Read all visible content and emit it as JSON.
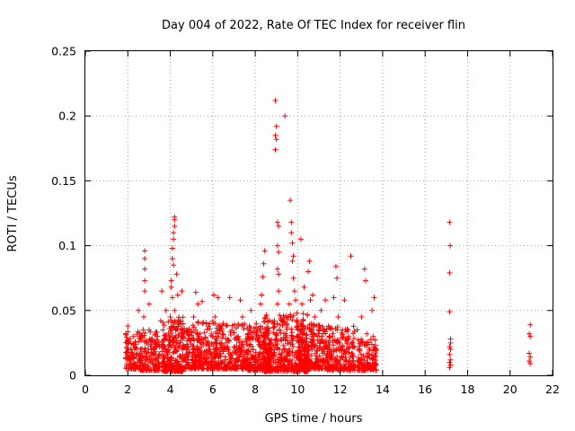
{
  "chart_data": {
    "type": "scatter",
    "title": "Day 004 of 2022, Rate Of TEC Index for receiver flin",
    "xlabel": "GPS time / hours",
    "ylabel": "ROTI / TECUs",
    "xlim": [
      0,
      22
    ],
    "ylim": [
      0,
      0.25
    ],
    "xticks": [
      0,
      2,
      4,
      6,
      8,
      10,
      12,
      14,
      16,
      18,
      20,
      22
    ],
    "xtick_labels": [
      "0",
      "2",
      "4",
      "6",
      "8",
      "10",
      "12",
      "14",
      "16",
      "18",
      "20",
      "22"
    ],
    "yticks": [
      0,
      0.05,
      0.1,
      0.15,
      0.2,
      0.25
    ],
    "ytick_labels": [
      "0",
      "0.05",
      "0.1",
      "0.15",
      "0.2",
      "0.25"
    ],
    "grid": true,
    "marker": "plus",
    "marker_color": "#ff0000",
    "series": [
      {
        "points": [
          [
            1.9,
            0.032
          ],
          [
            1.95,
            0.018
          ],
          [
            2.0,
            0.012
          ],
          [
            2.05,
            0.025
          ],
          [
            2.1,
            0.008
          ],
          [
            2.15,
            0.02
          ],
          [
            2.2,
            0.014
          ],
          [
            2.25,
            0.03
          ],
          [
            2.3,
            0.009
          ],
          [
            2.35,
            0.022
          ],
          [
            2.4,
            0.016
          ],
          [
            2.45,
            0.01
          ],
          [
            2.0,
            0.038
          ],
          [
            2.1,
            0.028
          ],
          [
            2.5,
            0.05
          ],
          [
            2.55,
            0.012
          ],
          [
            2.6,
            0.02
          ],
          [
            2.65,
            0.03
          ],
          [
            2.7,
            0.008
          ],
          [
            2.75,
            0.045
          ],
          [
            2.8,
            0.096
          ],
          [
            2.8,
            0.09
          ],
          [
            2.8,
            0.082
          ],
          [
            2.8,
            0.073
          ],
          [
            2.8,
            0.065
          ],
          [
            2.85,
            0.015
          ],
          [
            2.9,
            0.025
          ],
          [
            2.95,
            0.012
          ],
          [
            3.0,
            0.035
          ],
          [
            3.0,
            0.055
          ],
          [
            3.05,
            0.01
          ],
          [
            3.1,
            0.02
          ],
          [
            3.15,
            0.028
          ],
          [
            3.2,
            0.018
          ],
          [
            3.3,
            0.012
          ],
          [
            3.4,
            0.03
          ],
          [
            3.5,
            0.022
          ],
          [
            3.55,
            0.042
          ],
          [
            3.6,
            0.065
          ],
          [
            3.65,
            0.035
          ],
          [
            3.7,
            0.015
          ],
          [
            3.75,
            0.028
          ],
          [
            3.8,
            0.05
          ],
          [
            3.85,
            0.008
          ],
          [
            3.9,
            0.02
          ],
          [
            3.95,
            0.012
          ],
          [
            4.0,
            0.03
          ],
          [
            4.0,
            0.045
          ],
          [
            4.05,
            0.068
          ],
          [
            4.05,
            0.073
          ],
          [
            4.1,
            0.09
          ],
          [
            4.1,
            0.098
          ],
          [
            4.15,
            0.105
          ],
          [
            4.15,
            0.11
          ],
          [
            4.2,
            0.115
          ],
          [
            4.2,
            0.12
          ],
          [
            4.2,
            0.122
          ],
          [
            4.15,
            0.085
          ],
          [
            4.1,
            0.06
          ],
          [
            4.2,
            0.05
          ],
          [
            4.25,
            0.035
          ],
          [
            4.25,
            0.02
          ],
          [
            4.3,
            0.01
          ],
          [
            4.3,
            0.078
          ],
          [
            4.35,
            0.062
          ],
          [
            4.4,
            0.025
          ],
          [
            4.45,
            0.015
          ],
          [
            4.5,
            0.042
          ],
          [
            4.55,
            0.065
          ],
          [
            4.6,
            0.03
          ],
          [
            4.7,
            0.012
          ],
          [
            4.75,
            0.022
          ],
          [
            4.8,
            0.035
          ],
          [
            4.9,
            0.018
          ],
          [
            5.0,
            0.028
          ],
          [
            5.05,
            0.012
          ],
          [
            5.1,
            0.045
          ],
          [
            5.2,
            0.064
          ],
          [
            5.25,
            0.02
          ],
          [
            5.3,
            0.055
          ],
          [
            5.35,
            0.01
          ],
          [
            5.4,
            0.032
          ],
          [
            5.5,
            0.057
          ],
          [
            5.55,
            0.025
          ],
          [
            5.6,
            0.015
          ],
          [
            5.7,
            0.04
          ],
          [
            5.8,
            0.02
          ],
          [
            5.9,
            0.01
          ],
          [
            6.0,
            0.03
          ],
          [
            6.05,
            0.062
          ],
          [
            6.1,
            0.045
          ],
          [
            6.15,
            0.015
          ],
          [
            6.2,
            0.025
          ],
          [
            6.25,
            0.06
          ],
          [
            6.3,
            0.035
          ],
          [
            6.4,
            0.01
          ],
          [
            6.5,
            0.04
          ],
          [
            6.55,
            0.02
          ],
          [
            6.6,
            0.012
          ],
          [
            6.7,
            0.028
          ],
          [
            6.8,
            0.06
          ],
          [
            6.85,
            0.015
          ],
          [
            6.9,
            0.035
          ],
          [
            7.0,
            0.022
          ],
          [
            7.1,
            0.01
          ],
          [
            7.2,
            0.03
          ],
          [
            7.3,
            0.058
          ],
          [
            7.35,
            0.018
          ],
          [
            7.4,
            0.045
          ],
          [
            7.5,
            0.012
          ],
          [
            7.6,
            0.025
          ],
          [
            7.7,
            0.035
          ],
          [
            7.8,
            0.05
          ],
          [
            7.85,
            0.015
          ],
          [
            7.9,
            0.02
          ],
          [
            8.0,
            0.01
          ],
          [
            8.05,
            0.04
          ],
          [
            8.1,
            0.028
          ],
          [
            8.15,
            0.012
          ],
          [
            8.2,
            0.035
          ],
          [
            8.25,
            0.055
          ],
          [
            8.3,
            0.062
          ],
          [
            8.35,
            0.076
          ],
          [
            8.4,
            0.086
          ],
          [
            8.45,
            0.096
          ],
          [
            8.5,
            0.045
          ],
          [
            8.55,
            0.02
          ],
          [
            8.6,
            0.032
          ],
          [
            8.65,
            0.012
          ],
          [
            8.7,
            0.025
          ],
          [
            8.8,
            0.015
          ],
          [
            8.85,
            0.04
          ],
          [
            8.95,
            0.212
          ],
          [
            9.0,
            0.192
          ],
          [
            8.95,
            0.185
          ],
          [
            9.0,
            0.182
          ],
          [
            8.95,
            0.174
          ],
          [
            9.05,
            0.118
          ],
          [
            9.1,
            0.115
          ],
          [
            9.05,
            0.1
          ],
          [
            9.1,
            0.095
          ],
          [
            9.05,
            0.082
          ],
          [
            9.1,
            0.078
          ],
          [
            9.1,
            0.065
          ],
          [
            9.05,
            0.055
          ],
          [
            9.1,
            0.035
          ],
          [
            9.15,
            0.02
          ],
          [
            9.2,
            0.01
          ],
          [
            9.3,
            0.042
          ],
          [
            9.4,
            0.2
          ],
          [
            9.45,
            0.032
          ],
          [
            9.5,
            0.015
          ],
          [
            9.55,
            0.045
          ],
          [
            9.6,
            0.055
          ],
          [
            9.65,
            0.135
          ],
          [
            9.7,
            0.118
          ],
          [
            9.7,
            0.11
          ],
          [
            9.75,
            0.102
          ],
          [
            9.8,
            0.092
          ],
          [
            9.75,
            0.088
          ],
          [
            9.8,
            0.075
          ],
          [
            9.85,
            0.065
          ],
          [
            9.9,
            0.058
          ],
          [
            9.95,
            0.048
          ],
          [
            10.0,
            0.035
          ],
          [
            10.05,
            0.025
          ],
          [
            10.1,
            0.015
          ],
          [
            10.15,
            0.105
          ],
          [
            10.2,
            0.055
          ],
          [
            10.25,
            0.042
          ],
          [
            10.3,
            0.068
          ],
          [
            10.35,
            0.02
          ],
          [
            10.4,
            0.012
          ],
          [
            10.5,
            0.08
          ],
          [
            10.55,
            0.088
          ],
          [
            10.6,
            0.058
          ],
          [
            10.7,
            0.062
          ],
          [
            10.75,
            0.03
          ],
          [
            10.8,
            0.045
          ],
          [
            10.9,
            0.015
          ],
          [
            11.0,
            0.035
          ],
          [
            11.05,
            0.025
          ],
          [
            11.1,
            0.05
          ],
          [
            11.2,
            0.012
          ],
          [
            11.3,
            0.058
          ],
          [
            11.4,
            0.02
          ],
          [
            11.45,
            0.038
          ],
          [
            11.5,
            0.03
          ],
          [
            11.6,
            0.015
          ],
          [
            11.7,
            0.06
          ],
          [
            11.8,
            0.084
          ],
          [
            11.85,
            0.075
          ],
          [
            11.9,
            0.045
          ],
          [
            11.95,
            0.025
          ],
          [
            12.0,
            0.012
          ],
          [
            12.1,
            0.035
          ],
          [
            12.2,
            0.058
          ],
          [
            12.3,
            0.02
          ],
          [
            12.4,
            0.03
          ],
          [
            12.5,
            0.092
          ],
          [
            12.55,
            0.015
          ],
          [
            12.6,
            0.025
          ],
          [
            12.7,
            0.008
          ],
          [
            12.8,
            0.035
          ],
          [
            12.9,
            0.012
          ],
          [
            13.0,
            0.045
          ],
          [
            13.05,
            0.025
          ],
          [
            13.1,
            0.015
          ],
          [
            13.15,
            0.082
          ],
          [
            13.2,
            0.073
          ],
          [
            13.25,
            0.032
          ],
          [
            13.3,
            0.01
          ],
          [
            13.4,
            0.02
          ],
          [
            13.5,
            0.05
          ],
          [
            13.55,
            0.03
          ],
          [
            13.6,
            0.06
          ],
          [
            13.62,
            0.015
          ],
          [
            13.65,
            0.008
          ],
          [
            17.15,
            0.118
          ],
          [
            17.18,
            0.1
          ],
          [
            17.15,
            0.079
          ],
          [
            17.15,
            0.049
          ],
          [
            17.2,
            0.028
          ],
          [
            17.2,
            0.025
          ],
          [
            17.15,
            0.022
          ],
          [
            17.2,
            0.02
          ],
          [
            17.15,
            0.016
          ],
          [
            17.2,
            0.012
          ],
          [
            17.15,
            0.01
          ],
          [
            17.2,
            0.008
          ],
          [
            17.15,
            0.006
          ],
          [
            20.95,
            0.039
          ],
          [
            20.9,
            0.032
          ],
          [
            20.95,
            0.03
          ],
          [
            20.9,
            0.017
          ],
          [
            20.95,
            0.014
          ],
          [
            20.9,
            0.011
          ],
          [
            20.95,
            0.009
          ]
        ]
      }
    ],
    "dense_clusters": [
      {
        "x_range": [
          1.9,
          2.6
        ],
        "y_range": [
          0.005,
          0.034
        ],
        "count": 90
      },
      {
        "x_range": [
          2.6,
          3.5
        ],
        "y_range": [
          0.004,
          0.036
        ],
        "count": 130
      },
      {
        "x_range": [
          3.6,
          4.6
        ],
        "y_range": [
          0.003,
          0.045
        ],
        "count": 210
      },
      {
        "x_range": [
          4.6,
          6.0
        ],
        "y_range": [
          0.005,
          0.042
        ],
        "count": 230
      },
      {
        "x_range": [
          6.0,
          7.6
        ],
        "y_range": [
          0.005,
          0.04
        ],
        "count": 230
      },
      {
        "x_range": [
          7.6,
          8.7
        ],
        "y_range": [
          0.004,
          0.04
        ],
        "count": 200
      },
      {
        "x_range": [
          8.4,
          10.5
        ],
        "y_range": [
          0.003,
          0.048
        ],
        "count": 360
      },
      {
        "x_range": [
          10.0,
          11.4
        ],
        "y_range": [
          0.005,
          0.04
        ],
        "count": 230
      },
      {
        "x_range": [
          11.4,
          12.7
        ],
        "y_range": [
          0.004,
          0.038
        ],
        "count": 190
      },
      {
        "x_range": [
          12.8,
          13.7
        ],
        "y_range": [
          0.004,
          0.028
        ],
        "count": 110
      }
    ]
  }
}
